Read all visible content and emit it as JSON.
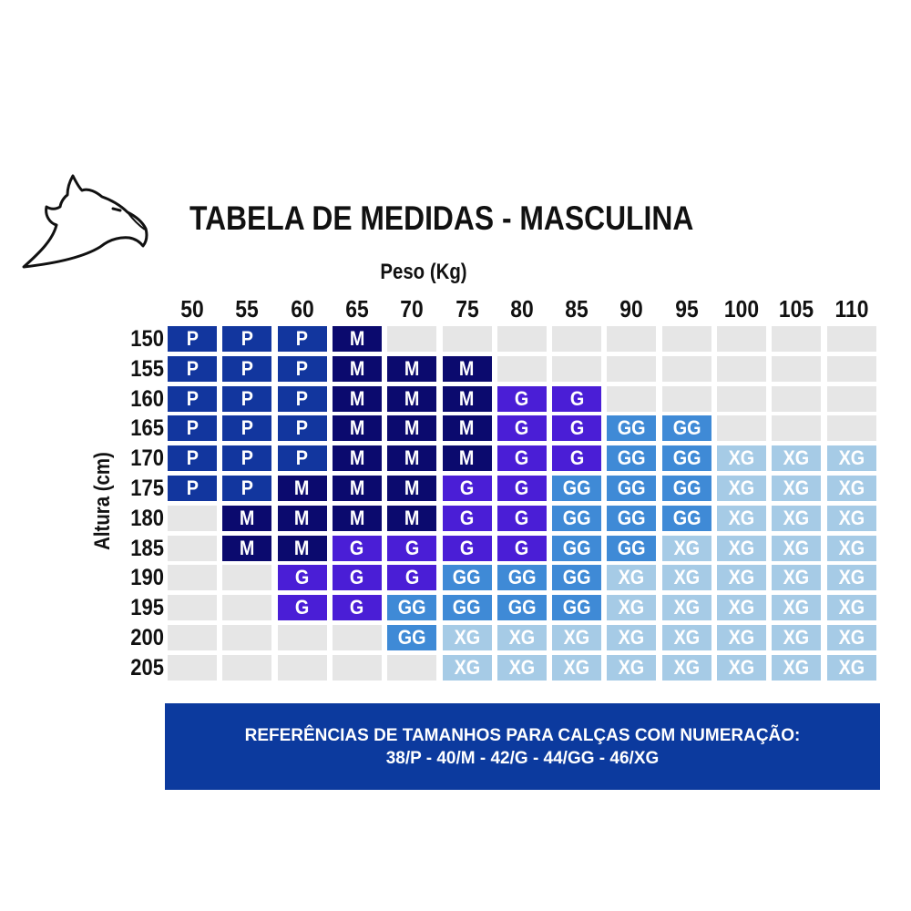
{
  "title": "TABELA DE MEDIDAS - MASCULINA",
  "x_axis_label": "Peso (Kg)",
  "y_axis_label": "Altura (cm)",
  "weights": [
    "50",
    "55",
    "60",
    "65",
    "70",
    "75",
    "80",
    "85",
    "90",
    "95",
    "100",
    "105",
    "110"
  ],
  "heights": [
    "150",
    "155",
    "160",
    "165",
    "170",
    "175",
    "180",
    "185",
    "190",
    "195",
    "200",
    "205"
  ],
  "grid": [
    [
      "P",
      "P",
      "P",
      "M",
      "",
      "",
      "",
      "",
      "",
      "",
      "",
      "",
      ""
    ],
    [
      "P",
      "P",
      "P",
      "M",
      "M",
      "M",
      "",
      "",
      "",
      "",
      "",
      "",
      ""
    ],
    [
      "P",
      "P",
      "P",
      "M",
      "M",
      "M",
      "G",
      "G",
      "",
      "",
      "",
      "",
      ""
    ],
    [
      "P",
      "P",
      "P",
      "M",
      "M",
      "M",
      "G",
      "G",
      "GG",
      "GG",
      "",
      "",
      ""
    ],
    [
      "P",
      "P",
      "P",
      "M",
      "M",
      "M",
      "G",
      "G",
      "GG",
      "GG",
      "XG",
      "XG",
      "XG"
    ],
    [
      "P",
      "P",
      "M",
      "M",
      "M",
      "G",
      "G",
      "GG",
      "GG",
      "GG",
      "XG",
      "XG",
      "XG"
    ],
    [
      "",
      "M",
      "M",
      "M",
      "M",
      "G",
      "G",
      "GG",
      "GG",
      "GG",
      "XG",
      "XG",
      "XG"
    ],
    [
      "",
      "M",
      "M",
      "G",
      "G",
      "G",
      "G",
      "GG",
      "GG",
      "XG",
      "XG",
      "XG",
      "XG"
    ],
    [
      "",
      "",
      "G",
      "G",
      "G",
      "GG",
      "GG",
      "GG",
      "XG",
      "XG",
      "XG",
      "XG",
      "XG"
    ],
    [
      "",
      "",
      "G",
      "G",
      "GG",
      "GG",
      "GG",
      "GG",
      "XG",
      "XG",
      "XG",
      "XG",
      "XG"
    ],
    [
      "",
      "",
      "",
      "",
      "GG",
      "XG",
      "XG",
      "XG",
      "XG",
      "XG",
      "XG",
      "XG",
      "XG"
    ],
    [
      "",
      "",
      "",
      "",
      "",
      "XG",
      "XG",
      "XG",
      "XG",
      "XG",
      "XG",
      "XG",
      "XG"
    ]
  ],
  "size_colors": {
    "P": "#12369e",
    "M": "#0b0a6e",
    "G": "#4a1ed6",
    "GG": "#3f8ad6",
    "XG": "#a6cbe6",
    "empty": "#e6e6e6"
  },
  "note": {
    "line1": "REFERÊNCIAS DE TAMANHOS PARA CALÇAS COM NUMERAÇÃO:",
    "line2": "38/P - 40/M - 42/G - 44/GG - 46/XG"
  },
  "logo_icon": "eagle-head-icon"
}
